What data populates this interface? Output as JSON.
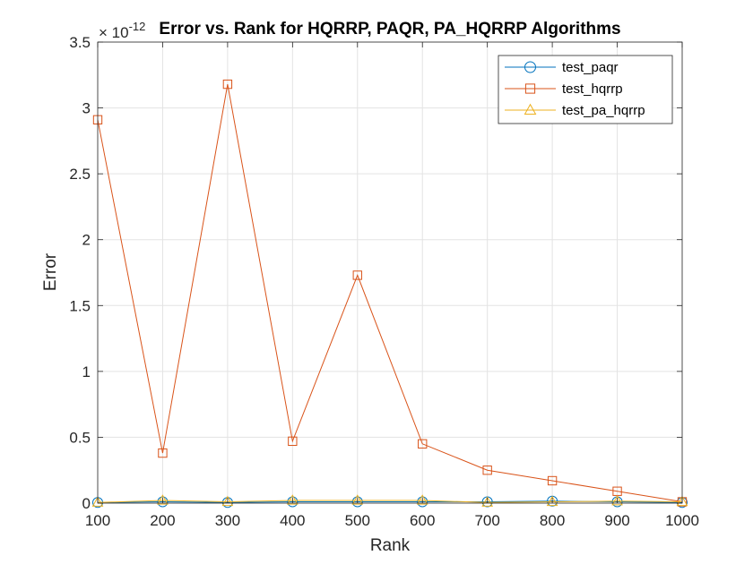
{
  "chart_data": {
    "type": "line",
    "title": "Error vs. Rank for HQRRP, PAQR, PA_HQRRP Algorithms",
    "xlabel": "Rank",
    "ylabel": "Error",
    "y_exponent_prefix": "× 10",
    "y_exponent_power": "-12",
    "x": [
      100,
      200,
      300,
      400,
      500,
      600,
      700,
      800,
      900,
      1000
    ],
    "xlim": [
      100,
      1000
    ],
    "ylim": [
      0,
      3.5
    ],
    "xticks": [
      "100",
      "200",
      "300",
      "400",
      "500",
      "600",
      "700",
      "800",
      "900",
      "1000"
    ],
    "yticks": [
      "0",
      "0.5",
      "1",
      "1.5",
      "2",
      "2.5",
      "3",
      "3.5"
    ],
    "grid": true,
    "legend_position": "top-right",
    "series": [
      {
        "name": "test_paqr",
        "color": "#0072BD",
        "marker": "circle",
        "values": [
          0.005,
          0.01,
          0.005,
          0.01,
          0.01,
          0.01,
          0.01,
          0.015,
          0.01,
          0.005
        ]
      },
      {
        "name": "test_hqrrp",
        "color": "#D95319",
        "marker": "square",
        "values": [
          2.91,
          0.38,
          3.18,
          0.47,
          1.73,
          0.45,
          0.25,
          0.17,
          0.09,
          0.01
        ]
      },
      {
        "name": "test_pa_hqrrp",
        "color": "#EDB120",
        "marker": "triangle",
        "values": [
          0.005,
          0.02,
          0.01,
          0.02,
          0.02,
          0.02,
          0.005,
          0.01,
          0.015,
          0.01
        ]
      }
    ]
  }
}
